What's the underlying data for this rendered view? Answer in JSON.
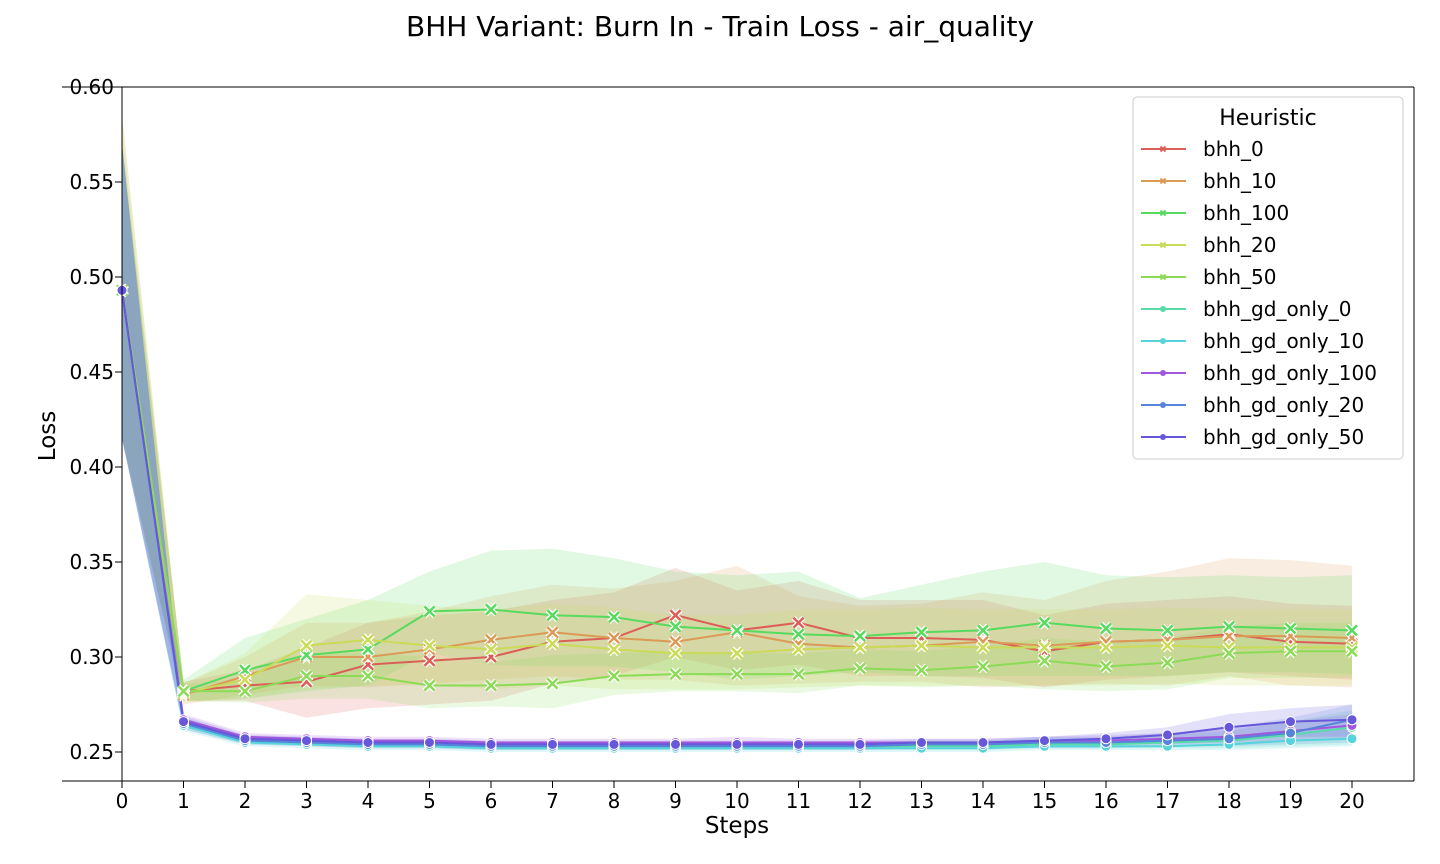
{
  "chart_data": {
    "type": "line",
    "title": "BHH Variant: Burn In - Train Loss - air_quality",
    "xlabel": "Steps",
    "ylabel": "Loss",
    "xlim": [
      0,
      20
    ],
    "ylim": [
      0.235,
      0.602
    ],
    "x": [
      0,
      1,
      2,
      3,
      4,
      5,
      6,
      7,
      8,
      9,
      10,
      11,
      12,
      13,
      14,
      15,
      16,
      17,
      18,
      19,
      20
    ],
    "xticks": [
      "0",
      "1",
      "2",
      "3",
      "4",
      "5",
      "6",
      "7",
      "8",
      "9",
      "10",
      "11",
      "12",
      "13",
      "14",
      "15",
      "16",
      "17",
      "18",
      "19",
      "20"
    ],
    "yticks": [
      "0.25",
      "0.30",
      "0.35",
      "0.40",
      "0.45",
      "0.50",
      "0.55",
      "0.60"
    ],
    "grid": false,
    "legend": {
      "title": "Heuristic",
      "position": "top-right"
    },
    "series": [
      {
        "name": "bhh_0",
        "color": "#db5f57",
        "marker": "x",
        "values": [
          0.493,
          0.282,
          0.285,
          0.287,
          0.296,
          0.298,
          0.3,
          0.308,
          0.31,
          0.322,
          0.314,
          0.318,
          0.31,
          0.31,
          0.309,
          0.303,
          0.308,
          0.309,
          0.312,
          0.308,
          0.307
        ],
        "band": [
          [
            0.415,
            0.57
          ],
          [
            0.277,
            0.287
          ],
          [
            0.277,
            0.293
          ],
          [
            0.268,
            0.305
          ],
          [
            0.273,
            0.318
          ],
          [
            0.275,
            0.322
          ],
          [
            0.277,
            0.324
          ],
          [
            0.286,
            0.33
          ],
          [
            0.29,
            0.334
          ],
          [
            0.3,
            0.347
          ],
          [
            0.293,
            0.335
          ],
          [
            0.296,
            0.34
          ],
          [
            0.29,
            0.33
          ],
          [
            0.29,
            0.33
          ],
          [
            0.289,
            0.33
          ],
          [
            0.284,
            0.322
          ],
          [
            0.288,
            0.328
          ],
          [
            0.29,
            0.33
          ],
          [
            0.292,
            0.332
          ],
          [
            0.29,
            0.328
          ],
          [
            0.288,
            0.327
          ]
        ]
      },
      {
        "name": "bhh_10",
        "color": "#dc9a57",
        "marker": "x",
        "values": [
          0.493,
          0.28,
          0.29,
          0.3,
          0.3,
          0.304,
          0.309,
          0.313,
          0.31,
          0.308,
          0.313,
          0.307,
          0.305,
          0.306,
          0.308,
          0.306,
          0.308,
          0.309,
          0.311,
          0.311,
          0.31
        ],
        "band": [
          [
            0.415,
            0.585
          ],
          [
            0.275,
            0.286
          ],
          [
            0.28,
            0.3
          ],
          [
            0.285,
            0.318
          ],
          [
            0.284,
            0.318
          ],
          [
            0.286,
            0.324
          ],
          [
            0.288,
            0.332
          ],
          [
            0.29,
            0.338
          ],
          [
            0.288,
            0.336
          ],
          [
            0.288,
            0.34
          ],
          [
            0.285,
            0.348
          ],
          [
            0.286,
            0.332
          ],
          [
            0.287,
            0.327
          ],
          [
            0.287,
            0.328
          ],
          [
            0.284,
            0.334
          ],
          [
            0.285,
            0.33
          ],
          [
            0.286,
            0.34
          ],
          [
            0.285,
            0.345
          ],
          [
            0.29,
            0.352
          ],
          [
            0.285,
            0.351
          ],
          [
            0.284,
            0.348
          ]
        ]
      },
      {
        "name": "bhh_100",
        "color": "#57db5f",
        "marker": "x",
        "values": [
          0.493,
          0.282,
          0.293,
          0.301,
          0.304,
          0.324,
          0.325,
          0.322,
          0.321,
          0.316,
          0.314,
          0.312,
          0.311,
          0.313,
          0.314,
          0.318,
          0.315,
          0.314,
          0.316,
          0.315,
          0.314
        ],
        "band": [
          [
            0.415,
            0.57
          ],
          [
            0.277,
            0.288
          ],
          [
            0.278,
            0.31
          ],
          [
            0.282,
            0.32
          ],
          [
            0.285,
            0.33
          ],
          [
            0.302,
            0.345
          ],
          [
            0.296,
            0.356
          ],
          [
            0.295,
            0.357
          ],
          [
            0.295,
            0.352
          ],
          [
            0.292,
            0.345
          ],
          [
            0.288,
            0.343
          ],
          [
            0.29,
            0.345
          ],
          [
            0.292,
            0.331
          ],
          [
            0.29,
            0.338
          ],
          [
            0.29,
            0.345
          ],
          [
            0.29,
            0.35
          ],
          [
            0.29,
            0.343
          ],
          [
            0.29,
            0.342
          ],
          [
            0.292,
            0.343
          ],
          [
            0.292,
            0.342
          ],
          [
            0.291,
            0.343
          ]
        ]
      },
      {
        "name": "bhh_20",
        "color": "#c9db57",
        "marker": "x",
        "values": [
          0.493,
          0.281,
          0.288,
          0.306,
          0.309,
          0.306,
          0.304,
          0.307,
          0.304,
          0.302,
          0.302,
          0.304,
          0.305,
          0.306,
          0.305,
          0.305,
          0.305,
          0.306,
          0.305,
          0.305,
          0.305
        ],
        "band": [
          [
            0.415,
            0.585
          ],
          [
            0.276,
            0.286
          ],
          [
            0.278,
            0.302
          ],
          [
            0.283,
            0.333
          ],
          [
            0.285,
            0.33
          ],
          [
            0.285,
            0.327
          ],
          [
            0.283,
            0.325
          ],
          [
            0.285,
            0.328
          ],
          [
            0.283,
            0.326
          ],
          [
            0.283,
            0.322
          ],
          [
            0.283,
            0.322
          ],
          [
            0.284,
            0.325
          ],
          [
            0.285,
            0.325
          ],
          [
            0.285,
            0.326
          ],
          [
            0.285,
            0.325
          ],
          [
            0.285,
            0.325
          ],
          [
            0.285,
            0.325
          ],
          [
            0.286,
            0.326
          ],
          [
            0.285,
            0.325
          ],
          [
            0.285,
            0.325
          ],
          [
            0.285,
            0.325
          ]
        ]
      },
      {
        "name": "bhh_50",
        "color": "#8bdb57",
        "marker": "x",
        "values": [
          0.493,
          0.282,
          0.282,
          0.29,
          0.29,
          0.285,
          0.285,
          0.286,
          0.29,
          0.291,
          0.291,
          0.291,
          0.294,
          0.293,
          0.295,
          0.298,
          0.295,
          0.297,
          0.302,
          0.303,
          0.303
        ],
        "band": [
          [
            0.415,
            0.575
          ],
          [
            0.277,
            0.286
          ],
          [
            0.276,
            0.288
          ],
          [
            0.278,
            0.302
          ],
          [
            0.278,
            0.302
          ],
          [
            0.273,
            0.3
          ],
          [
            0.274,
            0.297
          ],
          [
            0.273,
            0.301
          ],
          [
            0.28,
            0.302
          ],
          [
            0.282,
            0.303
          ],
          [
            0.282,
            0.302
          ],
          [
            0.281,
            0.302
          ],
          [
            0.285,
            0.304
          ],
          [
            0.284,
            0.303
          ],
          [
            0.285,
            0.306
          ],
          [
            0.283,
            0.31
          ],
          [
            0.282,
            0.308
          ],
          [
            0.283,
            0.31
          ],
          [
            0.289,
            0.316
          ],
          [
            0.289,
            0.318
          ],
          [
            0.289,
            0.318
          ]
        ]
      },
      {
        "name": "bhh_gd_only_0",
        "color": "#57dba7",
        "marker": "o",
        "values": [
          0.493,
          0.265,
          0.256,
          0.255,
          0.254,
          0.254,
          0.253,
          0.253,
          0.253,
          0.253,
          0.253,
          0.253,
          0.253,
          0.253,
          0.253,
          0.254,
          0.254,
          0.255,
          0.256,
          0.259,
          0.263
        ],
        "band": [
          [
            0.415,
            0.57
          ],
          [
            0.262,
            0.268
          ],
          [
            0.254,
            0.258
          ],
          [
            0.253,
            0.257
          ],
          [
            0.252,
            0.256
          ],
          [
            0.252,
            0.256
          ],
          [
            0.251,
            0.255
          ],
          [
            0.251,
            0.255
          ],
          [
            0.251,
            0.255
          ],
          [
            0.251,
            0.255
          ],
          [
            0.251,
            0.255
          ],
          [
            0.251,
            0.255
          ],
          [
            0.251,
            0.255
          ],
          [
            0.251,
            0.256
          ],
          [
            0.251,
            0.256
          ],
          [
            0.252,
            0.257
          ],
          [
            0.252,
            0.257
          ],
          [
            0.252,
            0.259
          ],
          [
            0.252,
            0.261
          ],
          [
            0.253,
            0.266
          ],
          [
            0.254,
            0.272
          ]
        ]
      },
      {
        "name": "bhh_gd_only_10",
        "color": "#57d3db",
        "marker": "o",
        "values": [
          0.493,
          0.264,
          0.255,
          0.254,
          0.253,
          0.253,
          0.252,
          0.252,
          0.252,
          0.252,
          0.252,
          0.252,
          0.252,
          0.252,
          0.252,
          0.253,
          0.253,
          0.253,
          0.254,
          0.256,
          0.257
        ],
        "band": [
          [
            0.415,
            0.57
          ],
          [
            0.261,
            0.267
          ],
          [
            0.253,
            0.257
          ],
          [
            0.252,
            0.256
          ],
          [
            0.251,
            0.255
          ],
          [
            0.251,
            0.255
          ],
          [
            0.25,
            0.254
          ],
          [
            0.25,
            0.254
          ],
          [
            0.25,
            0.254
          ],
          [
            0.25,
            0.254
          ],
          [
            0.25,
            0.254
          ],
          [
            0.25,
            0.254
          ],
          [
            0.25,
            0.254
          ],
          [
            0.25,
            0.254
          ],
          [
            0.25,
            0.254
          ],
          [
            0.251,
            0.255
          ],
          [
            0.251,
            0.255
          ],
          [
            0.251,
            0.256
          ],
          [
            0.251,
            0.258
          ],
          [
            0.252,
            0.26
          ],
          [
            0.253,
            0.262
          ]
        ]
      },
      {
        "name": "bhh_gd_only_100",
        "color": "#a157db",
        "marker": "o",
        "values": [
          0.493,
          0.267,
          0.258,
          0.257,
          0.256,
          0.256,
          0.255,
          0.255,
          0.255,
          0.255,
          0.255,
          0.255,
          0.255,
          0.255,
          0.255,
          0.256,
          0.256,
          0.257,
          0.258,
          0.261,
          0.264
        ],
        "band": [
          [
            0.415,
            0.57
          ],
          [
            0.264,
            0.27
          ],
          [
            0.256,
            0.26
          ],
          [
            0.255,
            0.259
          ],
          [
            0.254,
            0.258
          ],
          [
            0.254,
            0.258
          ],
          [
            0.253,
            0.257
          ],
          [
            0.253,
            0.257
          ],
          [
            0.253,
            0.257
          ],
          [
            0.253,
            0.257
          ],
          [
            0.253,
            0.258
          ],
          [
            0.253,
            0.257
          ],
          [
            0.253,
            0.257
          ],
          [
            0.253,
            0.257
          ],
          [
            0.253,
            0.257
          ],
          [
            0.254,
            0.258
          ],
          [
            0.254,
            0.259
          ],
          [
            0.254,
            0.26
          ],
          [
            0.255,
            0.262
          ],
          [
            0.256,
            0.266
          ],
          [
            0.257,
            0.27
          ]
        ]
      },
      {
        "name": "bhh_gd_only_20",
        "color": "#5784db",
        "marker": "o",
        "values": [
          0.493,
          0.265,
          0.256,
          0.255,
          0.254,
          0.254,
          0.253,
          0.253,
          0.253,
          0.253,
          0.253,
          0.253,
          0.253,
          0.254,
          0.254,
          0.255,
          0.255,
          0.256,
          0.257,
          0.26,
          0.267
        ],
        "band": [
          [
            0.415,
            0.57
          ],
          [
            0.262,
            0.268
          ],
          [
            0.254,
            0.258
          ],
          [
            0.253,
            0.257
          ],
          [
            0.252,
            0.256
          ],
          [
            0.252,
            0.256
          ],
          [
            0.251,
            0.255
          ],
          [
            0.251,
            0.255
          ],
          [
            0.251,
            0.255
          ],
          [
            0.251,
            0.255
          ],
          [
            0.251,
            0.255
          ],
          [
            0.251,
            0.255
          ],
          [
            0.251,
            0.255
          ],
          [
            0.252,
            0.256
          ],
          [
            0.252,
            0.256
          ],
          [
            0.252,
            0.258
          ],
          [
            0.252,
            0.258
          ],
          [
            0.253,
            0.26
          ],
          [
            0.253,
            0.263
          ],
          [
            0.254,
            0.268
          ],
          [
            0.255,
            0.275
          ]
        ]
      },
      {
        "name": "bhh_gd_only_50",
        "color": "#6657db",
        "marker": "o",
        "values": [
          0.493,
          0.266,
          0.257,
          0.256,
          0.255,
          0.255,
          0.254,
          0.254,
          0.254,
          0.254,
          0.254,
          0.254,
          0.254,
          0.255,
          0.255,
          0.256,
          0.257,
          0.259,
          0.263,
          0.266,
          0.267
        ],
        "band": [
          [
            0.415,
            0.57
          ],
          [
            0.263,
            0.269
          ],
          [
            0.255,
            0.259
          ],
          [
            0.254,
            0.258
          ],
          [
            0.253,
            0.257
          ],
          [
            0.253,
            0.257
          ],
          [
            0.252,
            0.256
          ],
          [
            0.252,
            0.256
          ],
          [
            0.252,
            0.256
          ],
          [
            0.252,
            0.256
          ],
          [
            0.252,
            0.256
          ],
          [
            0.252,
            0.256
          ],
          [
            0.252,
            0.256
          ],
          [
            0.253,
            0.257
          ],
          [
            0.253,
            0.257
          ],
          [
            0.254,
            0.258
          ],
          [
            0.254,
            0.26
          ],
          [
            0.255,
            0.263
          ],
          [
            0.257,
            0.27
          ],
          [
            0.258,
            0.273
          ],
          [
            0.258,
            0.275
          ]
        ]
      }
    ]
  }
}
